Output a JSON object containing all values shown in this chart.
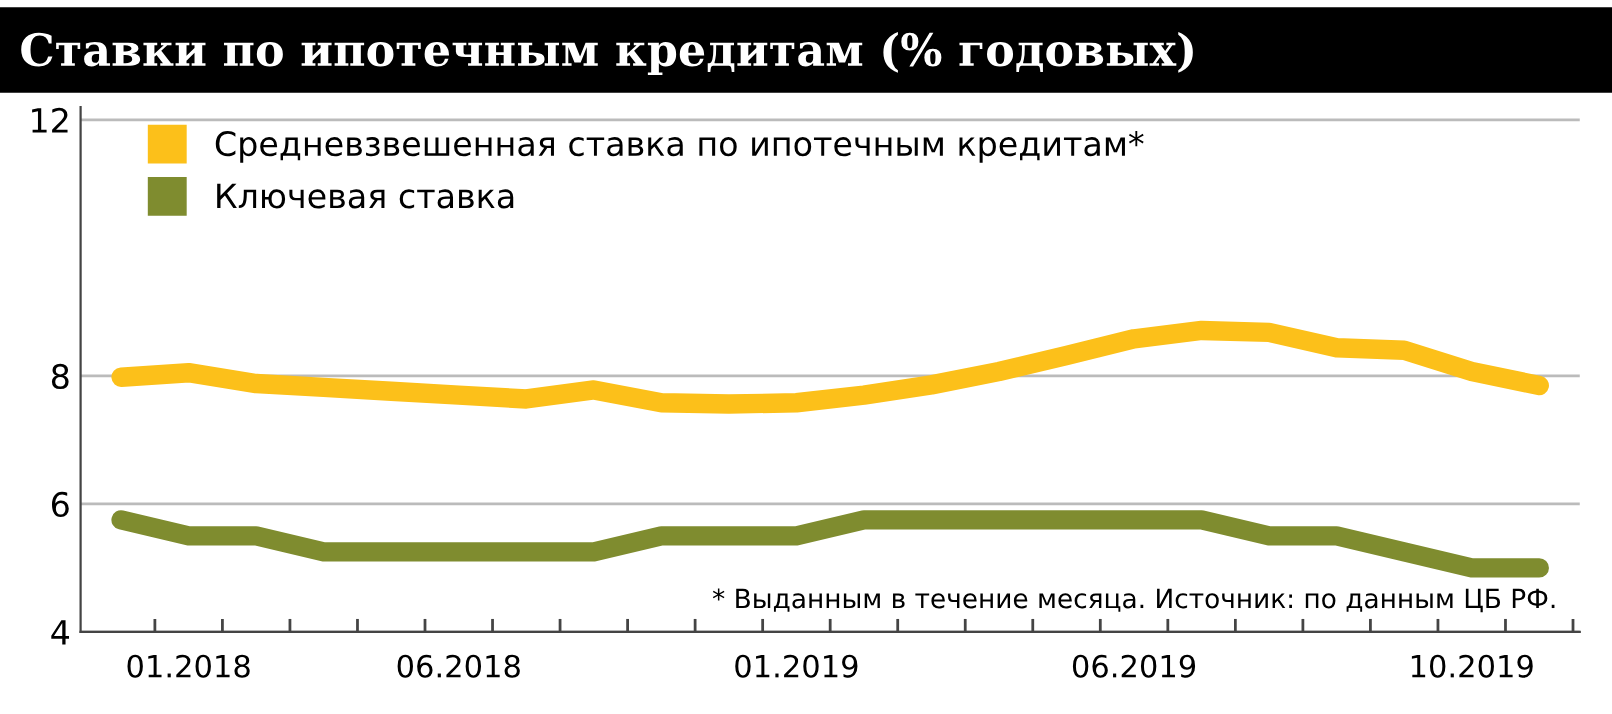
{
  "chart_data": {
    "type": "line",
    "title": "Ставки по ипотечным кредитам (% годовых)",
    "categories": [
      null,
      "01.2018",
      null,
      null,
      null,
      "06.2018",
      null,
      null,
      null,
      null,
      "01.2019",
      null,
      null,
      null,
      null,
      "06.2019",
      null,
      null,
      null,
      null,
      "10.2019",
      null
    ],
    "series": [
      {
        "name": "Средневзвешенная ставка по ипотечным кредитам*",
        "color": "#fcc01a",
        "values": [
          7.98,
          8.05,
          7.88,
          7.82,
          7.76,
          7.7,
          7.64,
          7.78,
          7.58,
          7.56,
          7.58,
          7.7,
          7.86,
          8.07,
          8.32,
          8.58,
          8.71,
          8.68,
          8.44,
          8.4,
          8.07,
          7.85
        ]
      },
      {
        "name": "Ключевая ставка",
        "color": "#7f8c2f",
        "values": [
          5.75,
          5.5,
          5.5,
          5.25,
          5.25,
          5.25,
          5.25,
          5.25,
          5.5,
          5.5,
          5.5,
          5.75,
          5.75,
          5.75,
          5.75,
          5.75,
          5.75,
          5.5,
          5.5,
          5.25,
          5.0,
          5.0
        ]
      }
    ],
    "ylim": [
      4,
      12.2
    ],
    "yticks": [
      4,
      6,
      8,
      12
    ],
    "grid": "y",
    "legend": "top left",
    "line_style": "solid",
    "annotations": [
      "* Выданным в течение месяца. Источник: по данным ЦБ РФ."
    ]
  }
}
